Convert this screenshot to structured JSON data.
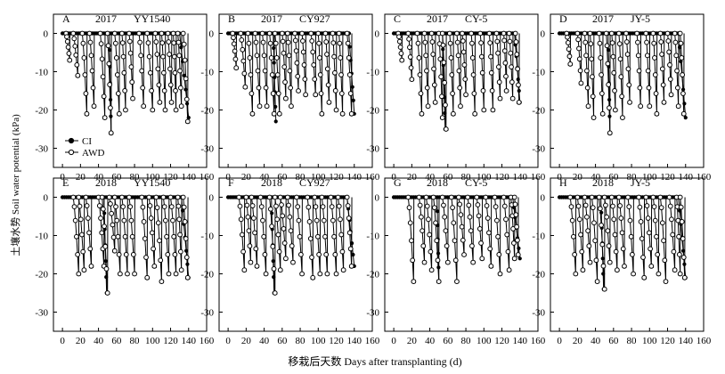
{
  "figure": {
    "ylabel": "土壤水势 Soil water potential (kPa)",
    "xlabel": "移栽后天数 Days after transplanting (d)",
    "legend": [
      {
        "name": "CI",
        "marker": "filled"
      },
      {
        "name": "AWD",
        "marker": "open"
      }
    ],
    "colors": {
      "axis": "#000000",
      "ci_fill": "#000000",
      "awd_fill": "#ffffff"
    }
  },
  "chart_data": [
    {
      "type": "line",
      "panel": "A",
      "year": "2017",
      "cultivar": "YY1540",
      "xlim": [
        -10,
        160
      ],
      "ylim": [
        -35,
        5
      ],
      "xticks": [
        0,
        20,
        40,
        60,
        80,
        100,
        120,
        140,
        160
      ],
      "yticks": [
        0,
        -10,
        -20,
        -30
      ],
      "awd_cycles": [
        [
          4,
          8,
          -7
        ],
        [
          12,
          17,
          -11
        ],
        [
          22,
          27,
          -21
        ],
        [
          30,
          35,
          -19
        ],
        [
          42,
          47,
          -22
        ],
        [
          50,
          54,
          -26
        ],
        [
          58,
          63,
          -21
        ],
        [
          66,
          70,
          -20
        ],
        [
          74,
          78,
          -17
        ],
        [
          85,
          90,
          -19
        ],
        [
          94,
          100,
          -20
        ],
        [
          103,
          108,
          -18
        ],
        [
          110,
          114,
          -20
        ],
        [
          117,
          121,
          -18
        ],
        [
          123,
          126,
          -20
        ],
        [
          128,
          132,
          -19
        ],
        [
          134,
          139,
          -23
        ]
      ],
      "ci_x": [
        0,
        132
      ],
      "ci_drop": [
        [
          130,
          140,
          -22
        ],
        [
          52,
          54,
          -26
        ]
      ]
    },
    {
      "type": "line",
      "panel": "B",
      "year": "2017",
      "cultivar": "CY927",
      "xlim": [
        -10,
        160
      ],
      "ylim": [
        -35,
        5
      ],
      "xticks": [
        0,
        20,
        40,
        60,
        80,
        100,
        120,
        140,
        160
      ],
      "yticks": [
        0,
        -10,
        -20,
        -30
      ],
      "awd_cycles": [
        [
          5,
          9,
          -9
        ],
        [
          14,
          19,
          -14
        ],
        [
          22,
          27,
          -21
        ],
        [
          30,
          35,
          -19
        ],
        [
          38,
          43,
          -19
        ],
        [
          46,
          51,
          -21
        ],
        [
          52,
          57,
          -21
        ],
        [
          60,
          64,
          -17
        ],
        [
          66,
          70,
          -19
        ],
        [
          74,
          78,
          -15
        ],
        [
          82,
          86,
          -16
        ],
        [
          92,
          97,
          -16
        ],
        [
          100,
          104,
          -21
        ],
        [
          108,
          112,
          -18
        ],
        [
          116,
          120,
          -20
        ],
        [
          123,
          127,
          -21
        ],
        [
          132,
          137,
          -21
        ]
      ],
      "ci_x": [
        0,
        135
      ],
      "ci_drop": [
        [
          50,
          53,
          -23
        ],
        [
          134,
          140,
          -21
        ]
      ]
    },
    {
      "type": "line",
      "panel": "C",
      "year": "2017",
      "cultivar": "CY-5",
      "xlim": [
        -10,
        160
      ],
      "ylim": [
        -35,
        5
      ],
      "xticks": [
        0,
        20,
        40,
        60,
        80,
        100,
        120,
        140,
        160
      ],
      "yticks": [
        0,
        -10,
        -20,
        -30
      ],
      "awd_cycles": [
        [
          5,
          9,
          -7
        ],
        [
          16,
          20,
          -12
        ],
        [
          26,
          31,
          -21
        ],
        [
          34,
          38,
          -19
        ],
        [
          42,
          46,
          -18
        ],
        [
          50,
          54,
          -22
        ],
        [
          54,
          58,
          -25
        ],
        [
          62,
          66,
          -21
        ],
        [
          70,
          74,
          -19
        ],
        [
          76,
          80,
          -16
        ],
        [
          86,
          90,
          -21
        ],
        [
          96,
          100,
          -20
        ],
        [
          106,
          110,
          -20
        ],
        [
          114,
          118,
          -17
        ],
        [
          122,
          125,
          -15
        ],
        [
          128,
          132,
          -17
        ],
        [
          135,
          139,
          -18
        ]
      ],
      "ci_x": [
        0,
        135
      ],
      "ci_drop": [
        [
          54,
          57,
          -25
        ],
        [
          134,
          140,
          -18
        ]
      ]
    },
    {
      "type": "line",
      "panel": "D",
      "year": "2017",
      "cultivar": "JY-5",
      "xlim": [
        -10,
        160
      ],
      "ylim": [
        -35,
        5
      ],
      "xticks": [
        0,
        20,
        40,
        60,
        80,
        100,
        120,
        140,
        160
      ],
      "yticks": [
        0,
        -10,
        -20,
        -30
      ],
      "awd_cycles": [
        [
          8,
          12,
          -8
        ],
        [
          20,
          24,
          -13
        ],
        [
          28,
          32,
          -19
        ],
        [
          34,
          38,
          -22
        ],
        [
          44,
          48,
          -21
        ],
        [
          52,
          56,
          -26
        ],
        [
          58,
          62,
          -20
        ],
        [
          66,
          70,
          -22
        ],
        [
          74,
          78,
          -18
        ],
        [
          86,
          90,
          -19
        ],
        [
          96,
          100,
          -19
        ],
        [
          104,
          108,
          -21
        ],
        [
          112,
          116,
          -18
        ],
        [
          120,
          124,
          -16
        ],
        [
          128,
          132,
          -19
        ],
        [
          134,
          138,
          -21
        ]
      ],
      "ci_x": [
        0,
        133
      ],
      "ci_drop": [
        [
          54,
          56,
          -26
        ],
        [
          132,
          140,
          -22
        ]
      ]
    },
    {
      "type": "line",
      "panel": "E",
      "year": "2018",
      "cultivar": "YY1540",
      "xlim": [
        -10,
        160
      ],
      "ylim": [
        -35,
        5
      ],
      "xticks": [
        0,
        20,
        40,
        60,
        80,
        100,
        120,
        140,
        160
      ],
      "yticks": [
        0,
        -10,
        -20,
        -30
      ],
      "awd_cycles": [
        [
          12,
          18,
          -20
        ],
        [
          18,
          24,
          -19
        ],
        [
          26,
          32,
          -18
        ],
        [
          40,
          46,
          -18
        ],
        [
          44,
          50,
          -25
        ],
        [
          52,
          58,
          -14
        ],
        [
          58,
          64,
          -20
        ],
        [
          66,
          72,
          -20
        ],
        [
          74,
          80,
          -20
        ],
        [
          88,
          94,
          -21
        ],
        [
          96,
          102,
          -18
        ],
        [
          104,
          110,
          -22
        ],
        [
          112,
          118,
          -20
        ],
        [
          120,
          126,
          -20
        ],
        [
          128,
          132,
          -19
        ],
        [
          134,
          139,
          -21
        ]
      ],
      "ci_x": [
        0,
        133
      ],
      "ci_drop": [
        [
          46,
          49,
          -25
        ],
        [
          132,
          140,
          -21
        ]
      ]
    },
    {
      "type": "line",
      "panel": "F",
      "year": "2018",
      "cultivar": "CY927",
      "xlim": [
        -10,
        160
      ],
      "ylim": [
        -35,
        5
      ],
      "xticks": [
        0,
        20,
        40,
        60,
        80,
        100,
        120,
        140,
        160
      ],
      "yticks": [
        0,
        -10,
        -20,
        -30
      ],
      "awd_cycles": [
        [
          12,
          18,
          -19
        ],
        [
          20,
          25,
          -17
        ],
        [
          26,
          32,
          -18
        ],
        [
          36,
          42,
          -20
        ],
        [
          46,
          52,
          -25
        ],
        [
          52,
          58,
          -19
        ],
        [
          58,
          64,
          -16
        ],
        [
          66,
          72,
          -17
        ],
        [
          76,
          82,
          -20
        ],
        [
          88,
          94,
          -21
        ],
        [
          96,
          102,
          -20
        ],
        [
          104,
          110,
          -20
        ],
        [
          114,
          120,
          -20
        ],
        [
          122,
          128,
          -19
        ],
        [
          132,
          137,
          -18
        ]
      ],
      "ci_x": [
        0,
        133
      ],
      "ci_drop": [
        [
          48,
          51,
          -25
        ],
        [
          132,
          140,
          -18
        ]
      ]
    },
    {
      "type": "line",
      "panel": "G",
      "year": "2018",
      "cultivar": "CY-5",
      "xlim": [
        -10,
        160
      ],
      "ylim": [
        -35,
        5
      ],
      "xticks": [
        0,
        20,
        40,
        60,
        80,
        100,
        120,
        140,
        160
      ],
      "yticks": [
        0,
        -10,
        -20,
        -30
      ],
      "awd_cycles": [
        [
          16,
          22,
          -22
        ],
        [
          28,
          34,
          -17
        ],
        [
          36,
          42,
          -19
        ],
        [
          44,
          50,
          -22
        ],
        [
          54,
          60,
          -17
        ],
        [
          64,
          70,
          -22
        ],
        [
          72,
          78,
          -15
        ],
        [
          82,
          88,
          -17
        ],
        [
          92,
          98,
          -16
        ],
        [
          102,
          108,
          -18
        ],
        [
          112,
          118,
          -20
        ],
        [
          122,
          128,
          -19
        ],
        [
          130,
          134,
          -16
        ],
        [
          134,
          138,
          -15
        ]
      ],
      "ci_x": [
        0,
        133
      ],
      "ci_drop": [
        [
          48,
          50,
          -22
        ],
        [
          132,
          140,
          -16
        ]
      ]
    },
    {
      "type": "line",
      "panel": "H",
      "year": "2018",
      "cultivar": "JY-5",
      "xlim": [
        -10,
        160
      ],
      "ylim": [
        -35,
        5
      ],
      "xticks": [
        0,
        20,
        40,
        60,
        80,
        100,
        120,
        140,
        160
      ],
      "yticks": [
        0,
        -10,
        -20,
        -30
      ],
      "awd_cycles": [
        [
          12,
          18,
          -20
        ],
        [
          20,
          26,
          -19
        ],
        [
          28,
          34,
          -17
        ],
        [
          36,
          42,
          -22
        ],
        [
          44,
          50,
          -24
        ],
        [
          50,
          56,
          -17
        ],
        [
          58,
          64,
          -19
        ],
        [
          66,
          72,
          -18
        ],
        [
          76,
          82,
          -20
        ],
        [
          88,
          94,
          -21
        ],
        [
          96,
          102,
          -18
        ],
        [
          104,
          110,
          -20
        ],
        [
          112,
          118,
          -22
        ],
        [
          122,
          128,
          -19
        ],
        [
          130,
          134,
          -20
        ],
        [
          134,
          139,
          -21
        ]
      ],
      "ci_x": [
        0,
        133
      ],
      "ci_drop": [
        [
          46,
          49,
          -24
        ],
        [
          132,
          140,
          -21
        ]
      ]
    }
  ]
}
